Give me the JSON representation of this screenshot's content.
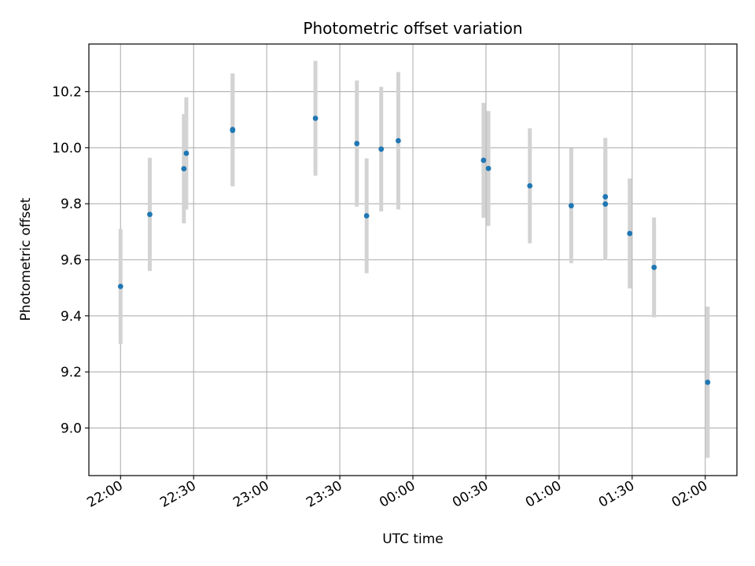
{
  "chart_data": {
    "type": "scatter",
    "title": "Photometric offset variation",
    "xlabel": "UTC time",
    "ylabel": "Photometric offset",
    "x_unit": "UTC time (HH:MM, crossing midnight)",
    "xlim": [
      "21:47",
      "02:13"
    ],
    "ylim": [
      8.83,
      10.37
    ],
    "grid": true,
    "legend": "none",
    "x_ticks": [
      "22:00",
      "22:30",
      "23:00",
      "23:30",
      "00:00",
      "00:30",
      "01:00",
      "01:30",
      "02:00"
    ],
    "y_ticks": [
      "9.0",
      "9.2",
      "9.4",
      "9.6",
      "9.8",
      "10.0",
      "10.2"
    ],
    "point_color": "#1f77b4",
    "errorbar_color": "#d3d3d3",
    "grid_color": "#b0b0b0",
    "points": [
      {
        "x": "22:00",
        "y": 9.505,
        "yerr": 0.205
      },
      {
        "x": "22:12",
        "y": 9.762,
        "yerr": 0.202
      },
      {
        "x": "22:26",
        "y": 9.925,
        "yerr": 0.195
      },
      {
        "x": "22:27",
        "y": 9.98,
        "yerr": 0.2
      },
      {
        "x": "22:46",
        "y": 10.065,
        "yerr": 0.2
      },
      {
        "x": "22:46",
        "y": 10.062,
        "yerr": 0.2
      },
      {
        "x": "23:20",
        "y": 10.105,
        "yerr": 0.205
      },
      {
        "x": "23:37",
        "y": 10.015,
        "yerr": 0.225
      },
      {
        "x": "23:41",
        "y": 9.757,
        "yerr": 0.205
      },
      {
        "x": "23:47",
        "y": 9.995,
        "yerr": 0.222
      },
      {
        "x": "23:54",
        "y": 10.025,
        "yerr": 0.245
      },
      {
        "x": "00:29",
        "y": 9.955,
        "yerr": 0.205
      },
      {
        "x": "00:31",
        "y": 9.926,
        "yerr": 0.205
      },
      {
        "x": "00:48",
        "y": 9.864,
        "yerr": 0.205
      },
      {
        "x": "01:05",
        "y": 9.793,
        "yerr": 0.205
      },
      {
        "x": "01:19",
        "y": 9.799,
        "yerr": 0.2
      },
      {
        "x": "01:19",
        "y": 9.825,
        "yerr": 0.21
      },
      {
        "x": "01:29",
        "y": 9.694,
        "yerr": 0.196
      },
      {
        "x": "01:39",
        "y": 9.573,
        "yerr": 0.178
      },
      {
        "x": "02:01",
        "y": 9.163,
        "yerr": 0.27
      }
    ]
  }
}
